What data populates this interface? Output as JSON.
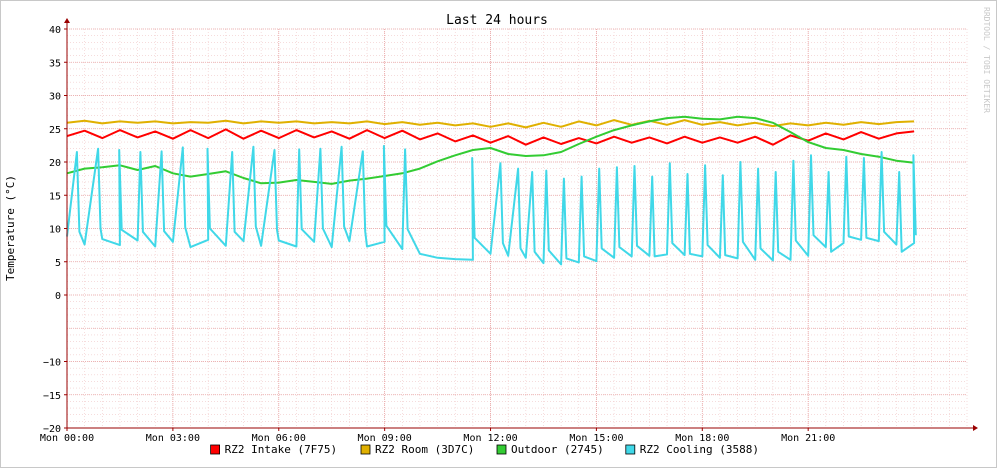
{
  "chart_data": {
    "type": "line",
    "title": "Last 24 hours",
    "ylabel": "Temperature (°C)",
    "xlabel": "",
    "watermark": "RRDTOOL / TOBI OETIKER",
    "ylim": [
      -20,
      40
    ],
    "xlim": [
      0,
      25.5
    ],
    "y_ticks": [
      40,
      35,
      30,
      25,
      20,
      15,
      10,
      5,
      0,
      -10,
      -15,
      -20
    ],
    "y_tick_labels": [
      "40",
      "35",
      "30",
      "25",
      "20",
      "15",
      "10",
      "5",
      "0",
      "−10",
      "−15",
      "−20"
    ],
    "x_ticks": [
      0,
      3,
      6,
      9,
      12,
      15,
      18,
      21
    ],
    "x_tick_labels": [
      "Mon 00:00",
      "Mon 03:00",
      "Mon 06:00",
      "Mon 09:00",
      "Mon 12:00",
      "Mon 15:00",
      "Mon 18:00",
      "Mon 21:00"
    ],
    "grid": true,
    "legend_position": "bottom",
    "colors": {
      "background": "#ffffff",
      "major_grid": "#e8a0a0",
      "minor_grid": "#f0c8c8",
      "axis": "#9a0000",
      "frame": "#c8c8c8",
      "text": "#000000",
      "watermark": "#c8c8c8"
    },
    "series": [
      {
        "name": "RZ2 Intake (7F75)",
        "color": "#ff0000",
        "x": [
          0,
          0.5,
          1,
          1.5,
          2,
          2.5,
          3,
          3.5,
          4,
          4.5,
          5,
          5.5,
          6,
          6.5,
          7,
          7.5,
          8,
          8.5,
          9,
          9.5,
          10,
          10.5,
          11,
          11.5,
          12,
          12.5,
          13,
          13.5,
          14,
          14.5,
          15,
          15.5,
          16,
          16.5,
          17,
          17.5,
          18,
          18.5,
          19,
          19.5,
          20,
          20.5,
          21,
          21.5,
          22,
          22.5,
          23,
          23.5,
          24
        ],
        "values": [
          23.9,
          24.7,
          23.6,
          24.8,
          23.7,
          24.6,
          23.5,
          24.8,
          23.6,
          24.9,
          23.5,
          24.7,
          23.6,
          24.8,
          23.7,
          24.6,
          23.5,
          24.8,
          23.6,
          24.7,
          23.4,
          24.3,
          23.1,
          24.0,
          22.9,
          23.9,
          22.6,
          23.7,
          22.7,
          23.6,
          22.8,
          23.8,
          22.9,
          23.7,
          22.8,
          23.8,
          22.9,
          23.7,
          22.9,
          23.8,
          22.6,
          24.0,
          23.2,
          24.3,
          23.4,
          24.5,
          23.5,
          24.3,
          24.6
        ]
      },
      {
        "name": "RZ2 Room (3D7C)",
        "color": "#e0b000",
        "x": [
          0,
          0.5,
          1,
          1.5,
          2,
          2.5,
          3,
          3.5,
          4,
          4.5,
          5,
          5.5,
          6,
          6.5,
          7,
          7.5,
          8,
          8.5,
          9,
          9.5,
          10,
          10.5,
          11,
          11.5,
          12,
          12.5,
          13,
          13.5,
          14,
          14.5,
          15,
          15.5,
          16,
          16.5,
          17,
          17.5,
          18,
          18.5,
          19,
          19.5,
          20,
          20.5,
          21,
          21.5,
          22,
          22.5,
          23,
          23.5,
          24
        ],
        "values": [
          25.9,
          26.2,
          25.8,
          26.1,
          25.9,
          26.1,
          25.8,
          26.0,
          25.9,
          26.2,
          25.8,
          26.1,
          25.9,
          26.1,
          25.8,
          26.0,
          25.8,
          26.1,
          25.7,
          26.0,
          25.6,
          25.9,
          25.5,
          25.8,
          25.3,
          25.8,
          25.2,
          25.9,
          25.3,
          26.1,
          25.5,
          26.3,
          25.6,
          26.2,
          25.6,
          26.3,
          25.6,
          26.0,
          25.5,
          25.9,
          25.4,
          25.8,
          25.5,
          25.9,
          25.6,
          26.0,
          25.7,
          26.0,
          26.1
        ]
      },
      {
        "name": "Outdoor (2745)",
        "color": "#33cc33",
        "x": [
          0,
          0.5,
          1,
          1.5,
          2,
          2.5,
          3,
          3.5,
          4,
          4.5,
          5,
          5.5,
          6,
          6.5,
          7,
          7.5,
          8,
          8.5,
          9,
          9.5,
          10,
          10.5,
          11,
          11.5,
          12,
          12.5,
          13,
          13.5,
          14,
          14.5,
          15,
          15.5,
          16,
          16.5,
          17,
          17.5,
          18,
          18.5,
          19,
          19.5,
          20,
          20.5,
          21,
          21.5,
          22,
          22.5,
          23,
          23.5,
          24
        ],
        "values": [
          18.3,
          19.0,
          19.2,
          19.5,
          18.8,
          19.4,
          18.3,
          17.8,
          18.2,
          18.6,
          17.6,
          16.8,
          16.9,
          17.3,
          17.0,
          16.7,
          17.2,
          17.5,
          17.9,
          18.3,
          19.0,
          20.1,
          21.0,
          21.8,
          22.1,
          21.2,
          20.9,
          21.0,
          21.5,
          22.7,
          23.8,
          24.8,
          25.5,
          26.1,
          26.6,
          26.8,
          26.5,
          26.4,
          26.8,
          26.6,
          25.9,
          24.5,
          23.0,
          22.1,
          21.8,
          21.2,
          20.8,
          20.2,
          19.9
        ]
      },
      {
        "name": "RZ2 Cooling (3588)",
        "color": "#40d8e8",
        "x": [
          0,
          0.5,
          1,
          1.5,
          2,
          2.5,
          3,
          3.5,
          4,
          4.5,
          5,
          5.5,
          6,
          6.5,
          7,
          7.5,
          8,
          8.5,
          9,
          9.5,
          10,
          10.5,
          11,
          11.5,
          12,
          12.5,
          13,
          13.5,
          14,
          14.5,
          15,
          15.5,
          16,
          16.5,
          17,
          17.5,
          18,
          18.5,
          19,
          19.5,
          20,
          20.5,
          21,
          21.5,
          22,
          22.5,
          23,
          23.5,
          24
        ],
        "values": [
          8.8,
          7.6,
          8.4,
          7.5,
          8.2,
          7.3,
          8.0,
          7.2,
          8.3,
          7.4,
          8.1,
          7.4,
          8.2,
          7.3,
          8.0,
          7.2,
          8.1,
          7.3,
          8.0,
          6.9,
          6.2,
          5.6,
          5.4,
          5.3,
          6.2,
          5.9,
          5.6,
          4.8,
          4.6,
          4.9,
          5.1,
          5.6,
          5.8,
          5.9,
          6.1,
          6.0,
          5.8,
          5.6,
          5.5,
          5.3,
          5.2,
          5.3,
          5.9,
          7.2,
          7.8,
          8.3,
          8.1,
          7.6,
          7.8
        ],
        "spike_x": [
          0.3,
          0.9,
          1.5,
          2.1,
          2.7,
          3.3,
          4.0,
          4.7,
          5.3,
          5.9,
          6.6,
          7.2,
          7.8,
          8.4,
          9.0,
          9.6,
          11.5,
          12.3,
          12.8,
          13.2,
          13.6,
          14.1,
          14.6,
          15.1,
          15.6,
          16.1,
          16.6,
          17.1,
          17.6,
          18.1,
          18.6,
          19.1,
          19.6,
          20.1,
          20.6,
          21.1,
          21.6,
          22.1,
          22.6,
          23.1,
          23.6,
          24.0
        ],
        "spike_values": [
          21.5,
          22.0,
          21.8,
          21.5,
          21.6,
          22.2,
          22.0,
          21.5,
          22.3,
          21.8,
          21.9,
          22.0,
          22.3,
          21.6,
          22.4,
          21.9,
          20.6,
          19.8,
          19.0,
          18.5,
          18.7,
          17.5,
          17.8,
          19.0,
          19.2,
          19.4,
          17.8,
          19.8,
          18.2,
          19.5,
          18.0,
          20.0,
          19.0,
          18.5,
          20.2,
          21.0,
          18.5,
          20.8,
          20.6,
          21.5,
          18.5,
          21.0
        ]
      }
    ]
  }
}
